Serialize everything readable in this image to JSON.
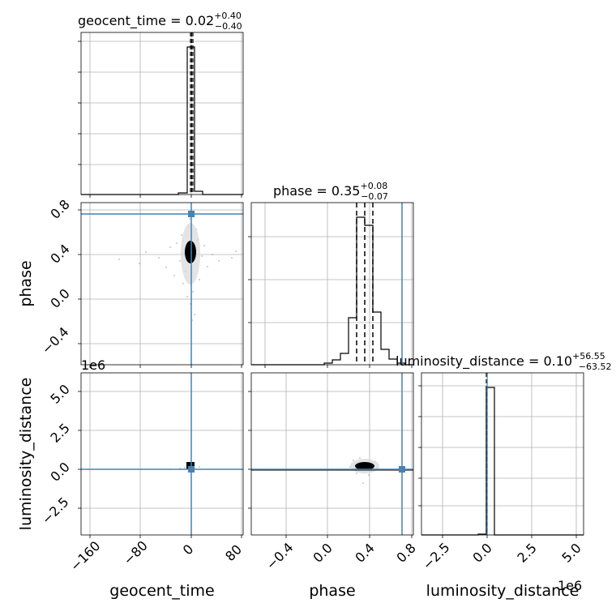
{
  "chart_data": {
    "type": "corner",
    "parameters": [
      "geocent_time",
      "phase",
      "luminosity_distance"
    ],
    "axis_labels": {
      "geocent_time": "geocent_time",
      "phase": "phase",
      "luminosity_distance": "luminosity_distance"
    },
    "panels": [
      {
        "title": "geocent_time = 0.02",
        "title_plus": "+0.40",
        "title_minus": "−0.40",
        "median": 0.02,
        "err_plus": 0.4,
        "err_minus": 0.4
      },
      {
        "title": "phase = 0.35",
        "title_plus": "+0.08",
        "title_minus": "−0.07",
        "median": 0.35,
        "err_plus": 0.08,
        "err_minus": 0.07
      },
      {
        "title": "luminosity_distance = 0.10",
        "title_plus": "+56.55",
        "title_minus": "−63.52",
        "median": 0.1,
        "err_plus": 56.55,
        "err_minus": 63.52
      }
    ],
    "geocent_ticks": [
      "−160",
      "−80",
      "0",
      "80"
    ],
    "phase_ticks": [
      "−0.4",
      "0.0",
      "0.4",
      "0.8"
    ],
    "ld_ticks": [
      "−2.5",
      "0.0",
      "2.5",
      "5.0"
    ],
    "offset_label": "1e6",
    "truth": {
      "geocent_time": 0.0,
      "phase": 0.7,
      "luminosity_distance": 0.0
    },
    "truth_color": "#4682b4",
    "grid": true
  }
}
